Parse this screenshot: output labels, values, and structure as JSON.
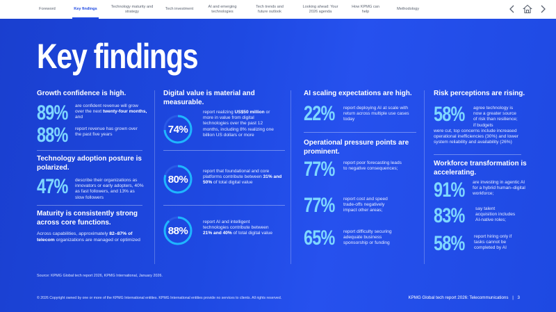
{
  "nav": {
    "items": [
      "Foreword",
      "Key findings",
      "Technology maturity and strategy",
      "Tech investment",
      "AI and emerging technologies",
      "Tech trends and future outlook",
      "Looking ahead: Your 2026 agenda",
      "How KPMG can help",
      "Methodology"
    ],
    "icons": [
      "chevron-left-icon",
      "home-icon",
      "chevron-right-icon"
    ]
  },
  "title": "Key findings",
  "growth": {
    "heading": "Growth confidence is high.",
    "stat1": "89%",
    "text1_pre": "are confident revenue will grow over the next ",
    "text1_bold": "twenty-four months,",
    "text1_post": " and",
    "stat2": "88%",
    "text2": "report revenue has grown over the past five years"
  },
  "adoption": {
    "heading": "Technology adoption posture is polarized.",
    "stat": "47%",
    "text": "describe their organizations as innovators or early adopters, 40% as fast followers, and 13% as slow followers"
  },
  "maturity": {
    "heading": "Maturity is consistently strong across core functions.",
    "text_pre": "Across capabilities, approximately ",
    "text_bold": "82–87% of telecom",
    "text_post": " organizations are managed or optimized"
  },
  "digital": {
    "heading": "Digital value is material and measurable.",
    "ring1": "74%",
    "ring1_value": 74,
    "text1_pre": "report realizing ",
    "text1_bold": "US$50 million",
    "text1_post": " or more in value from digital technologies over the past 12 months, including 8% realizing one billion US dollars or more",
    "ring2": "80%",
    "ring2_value": 80,
    "text2_pre": "report that foundational and core platforms contribute between ",
    "text2_bold": "31% and 50%",
    "text2_post": " of total digital value",
    "ring3": "88%",
    "ring3_value": 88,
    "text3_pre": "report AI and intelligent technologies contribute between ",
    "text3_bold": "21% and 40%",
    "text3_post": " of total digital value"
  },
  "ai": {
    "heading": "AI scaling expectations are high.",
    "stat": "22%",
    "text": "report deploying AI at scale with return across multiple use cases today"
  },
  "pressure": {
    "heading": "Operational pressure points are prominent.",
    "stat1": "77%",
    "text1": "report poor forecasting leads to negative consequences;",
    "stat2": "77%",
    "text2": "report cost and speed trade-offs negatively impact other areas;",
    "stat3": "65%",
    "text3": "report difficulty securing adequate business sponsorship or funding"
  },
  "risk": {
    "heading": "Risk perceptions are rising.",
    "stat": "58%",
    "text_side": "agree technology is now a greater source of risk than resilience; if budgets",
    "text_wide": "were cut, top concerns include increased operational inefficiencies (30%) and lower system reliability and availability (26%)"
  },
  "workforce": {
    "heading": "Workforce transformation is accelerating.",
    "stat1": "91%",
    "text1": "are investing in agentic AI for a hybrid human–digital workforce;",
    "stat2": "83%",
    "text2": "say talent acquisition includes AI-native roles;",
    "stat3": "58%",
    "text3": "report hiring only if tasks cannot be completed by AI"
  },
  "source": "Source: KPMG Global tech report 2026, KPMG International, January 2026.",
  "footer": {
    "copyright": "© 2026 Copyright owned by one or more of the KPMG International entities. KPMG International entities provide no services to clients. All rights reserved.",
    "report": "KPMG Global tech report 2026: Telecommunications",
    "divider": "|",
    "page": "3"
  },
  "colors": {
    "accent": "#1e49e2",
    "stat": "#7fd7ff",
    "ring": "#1fb6ff"
  }
}
